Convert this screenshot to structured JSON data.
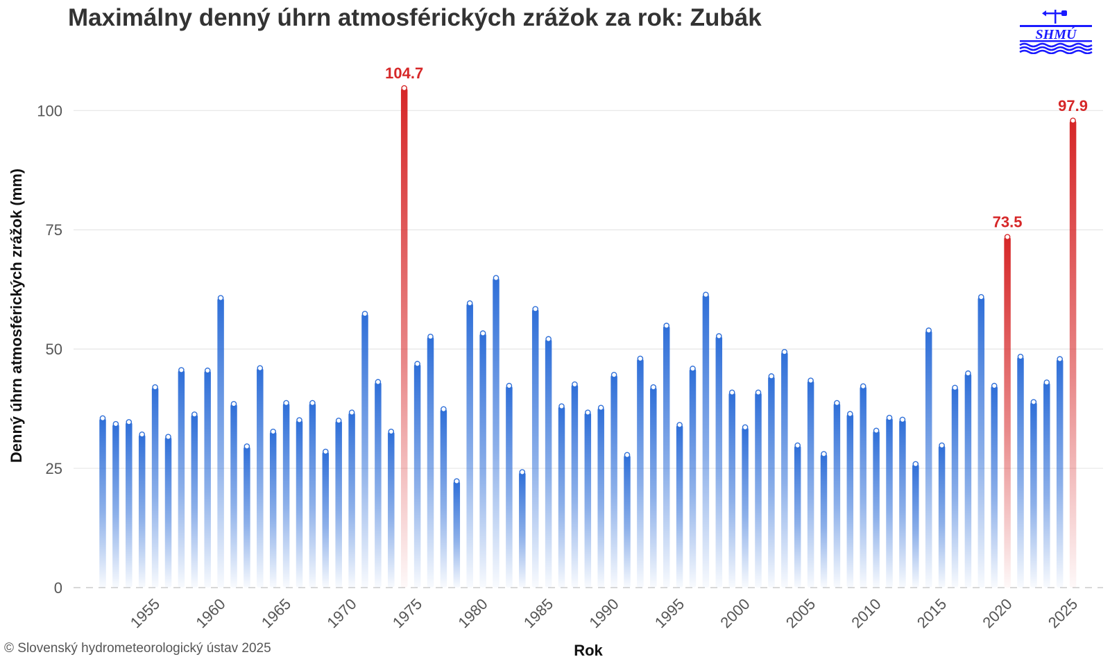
{
  "title": "Maximálny denný úhrn atmosférických zrážok za rok: Zubák",
  "copyright": "© Slovenský hydrometeorologický ústav 2025",
  "logo": {
    "text": "SHMÚ",
    "color": "#1a1aff"
  },
  "colors": {
    "normal": "#2f6fd8",
    "highlight": "#d62728",
    "grid": "#e6e6e6",
    "marker_fill": "#ffffff"
  },
  "chart_data": {
    "type": "bar",
    "title": "Maximálny denný úhrn atmosférických zrážok za rok: Zubák",
    "xlabel": "Rok",
    "ylabel": "Denný úhrn atmosférických zrážok (mm)",
    "ylim": [
      0,
      110
    ],
    "yticks": [
      0,
      25,
      50,
      75,
      100
    ],
    "xticks": [
      1955,
      1960,
      1965,
      1970,
      1975,
      1980,
      1985,
      1990,
      1995,
      2000,
      2005,
      2010,
      2015,
      2020,
      2025
    ],
    "grid": true,
    "x": [
      1951,
      1952,
      1953,
      1954,
      1955,
      1956,
      1957,
      1958,
      1959,
      1960,
      1961,
      1962,
      1963,
      1964,
      1965,
      1966,
      1967,
      1968,
      1969,
      1970,
      1971,
      1972,
      1973,
      1974,
      1975,
      1976,
      1977,
      1978,
      1979,
      1980,
      1981,
      1982,
      1983,
      1984,
      1985,
      1986,
      1987,
      1988,
      1989,
      1990,
      1991,
      1992,
      1993,
      1994,
      1995,
      1996,
      1997,
      1998,
      1999,
      2000,
      2001,
      2002,
      2003,
      2004,
      2005,
      2006,
      2007,
      2008,
      2009,
      2010,
      2011,
      2012,
      2013,
      2014,
      2015,
      2016,
      2017,
      2018,
      2019,
      2020,
      2021,
      2022,
      2023,
      2024,
      2025
    ],
    "values": [
      35.5,
      34.3,
      34.7,
      32.1,
      42.0,
      31.6,
      45.6,
      36.3,
      45.5,
      60.7,
      38.5,
      29.6,
      46.0,
      32.7,
      38.7,
      35.1,
      38.7,
      28.5,
      35.0,
      36.7,
      57.4,
      43.1,
      32.7,
      104.7,
      46.9,
      52.6,
      37.4,
      22.3,
      59.6,
      53.3,
      64.9,
      42.3,
      24.2,
      58.4,
      52.1,
      38.0,
      42.6,
      36.7,
      37.7,
      44.6,
      27.8,
      48.0,
      42.0,
      54.9,
      34.1,
      45.9,
      61.4,
      52.7,
      40.9,
      33.6,
      40.9,
      44.3,
      49.4,
      29.8,
      43.4,
      28.0,
      38.7,
      36.4,
      42.2,
      32.9,
      35.6,
      35.2,
      25.9,
      53.9,
      29.8,
      41.9,
      44.9,
      60.9,
      42.3,
      73.5,
      48.4,
      38.9,
      43.0,
      47.9,
      97.9
    ],
    "highlighted": [
      {
        "x": 1974,
        "value": 104.7,
        "label": "104.7"
      },
      {
        "x": 2020,
        "value": 73.5,
        "label": "73.5"
      },
      {
        "x": 2025,
        "value": 97.9,
        "label": "97.9"
      }
    ]
  }
}
